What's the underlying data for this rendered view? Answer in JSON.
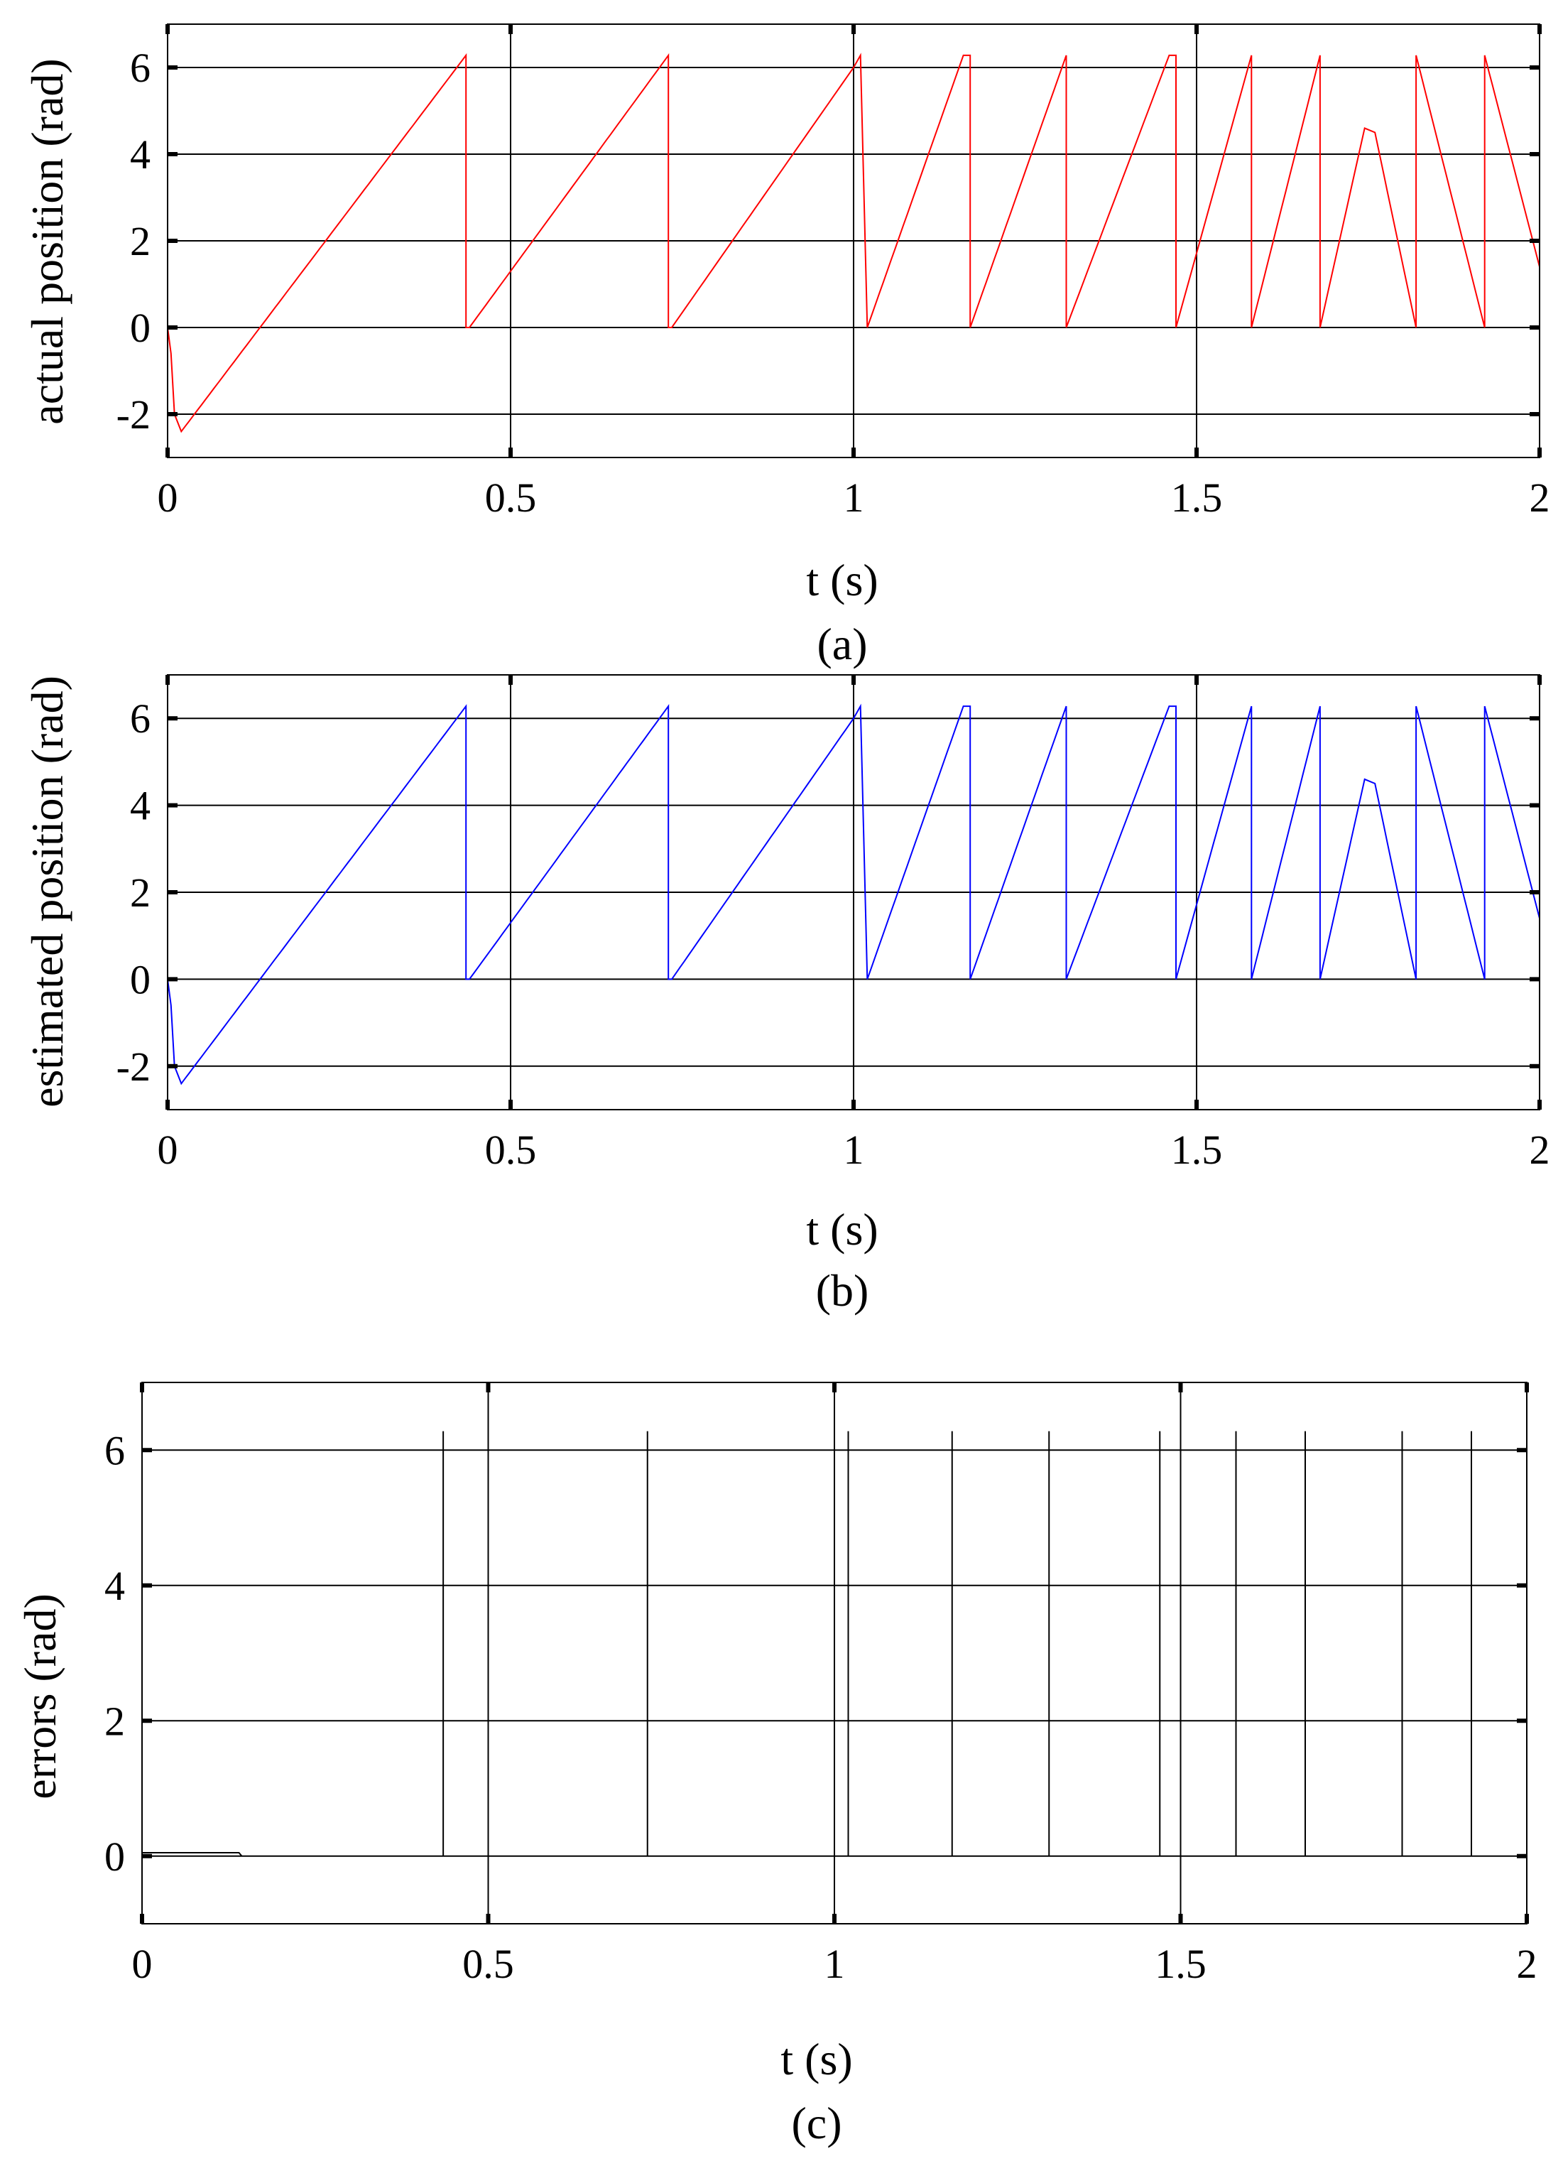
{
  "colors": {
    "background": "#ffffff",
    "grid": "#000000",
    "frame": "#000000",
    "series_a": "#ff0000",
    "series_b": "#0000ff",
    "series_c": "#000000"
  },
  "chart_data": [
    {
      "id": "a",
      "type": "line",
      "caption": "(a)",
      "xlabel": "t (s)",
      "ylabel": "actual position (rad)",
      "xlim": [
        0,
        2
      ],
      "ylim": [
        -3,
        7
      ],
      "xticks": [
        0,
        0.5,
        1,
        1.5,
        2
      ],
      "xtick_labels": [
        "0",
        "0.5",
        "1",
        "1.5",
        "2"
      ],
      "yticks": [
        -2,
        0,
        2,
        4,
        6
      ],
      "ytick_labels": [
        "-2",
        "0",
        "2",
        "4",
        "6"
      ],
      "grid": true,
      "series": [
        {
          "kind": "sawtooth",
          "color": "#ff0000",
          "x": [
            0,
            0.005,
            0.01,
            0.02,
            0.435,
            0.435,
            0.44,
            0.73,
            0.73,
            0.735,
            1.0,
            1.01,
            1.02,
            1.16,
            1.17,
            1.17,
            1.31,
            1.31,
            1.46,
            1.47,
            1.47,
            1.58,
            1.58,
            1.68,
            1.68,
            1.745,
            1.76,
            1.82,
            1.82,
            1.82,
            1.92,
            1.92,
            2.0
          ],
          "y": [
            0,
            -0.6,
            -2.0,
            -2.4,
            6.28,
            0.0,
            0.0,
            6.28,
            0.0,
            0.0,
            6.0,
            6.28,
            0.0,
            6.28,
            6.28,
            0.0,
            6.28,
            0.0,
            6.28,
            6.28,
            0.0,
            6.28,
            0.0,
            6.28,
            0.0,
            4.6,
            4.5,
            0.0,
            6.28,
            6.28,
            0.0,
            6.28,
            1.4
          ]
        }
      ]
    },
    {
      "id": "b",
      "type": "line",
      "caption": "(b)",
      "xlabel": "t (s)",
      "ylabel": "estimated position (rad)",
      "xlim": [
        0,
        2
      ],
      "ylim": [
        -3,
        7
      ],
      "xticks": [
        0,
        0.5,
        1,
        1.5,
        2
      ],
      "xtick_labels": [
        "0",
        "0.5",
        "1",
        "1.5",
        "2"
      ],
      "yticks": [
        -2,
        0,
        2,
        4,
        6
      ],
      "ytick_labels": [
        "-2",
        "0",
        "2",
        "4",
        "6"
      ],
      "grid": true,
      "series": [
        {
          "kind": "sawtooth",
          "color": "#0000ff",
          "x": [
            0,
            0.005,
            0.01,
            0.02,
            0.435,
            0.435,
            0.44,
            0.73,
            0.73,
            0.735,
            1.0,
            1.01,
            1.02,
            1.16,
            1.17,
            1.17,
            1.31,
            1.31,
            1.46,
            1.47,
            1.47,
            1.58,
            1.58,
            1.68,
            1.68,
            1.745,
            1.76,
            1.82,
            1.82,
            1.82,
            1.92,
            1.92,
            2.0
          ],
          "y": [
            0,
            -0.6,
            -2.0,
            -2.4,
            6.28,
            0.0,
            0.0,
            6.28,
            0.0,
            0.0,
            6.0,
            6.28,
            0.0,
            6.28,
            6.28,
            0.0,
            6.28,
            0.0,
            6.28,
            6.28,
            0.0,
            6.28,
            0.0,
            6.28,
            0.0,
            4.6,
            4.5,
            0.0,
            6.28,
            6.28,
            0.0,
            6.28,
            1.4
          ]
        }
      ]
    },
    {
      "id": "c",
      "type": "line",
      "caption": "(c)",
      "xlabel": "t (s)",
      "ylabel": "errors (rad)",
      "xlim": [
        0,
        2
      ],
      "ylim": [
        -1,
        7
      ],
      "xticks": [
        0,
        0.5,
        1,
        1.5,
        2
      ],
      "xtick_labels": [
        "0",
        "0.5",
        "1",
        "1.5",
        "2"
      ],
      "yticks": [
        0,
        2,
        4,
        6
      ],
      "ytick_labels": [
        "0",
        "2",
        "4",
        "6"
      ],
      "grid": true,
      "series": [
        {
          "kind": "spikes",
          "color": "#000000",
          "baseline": 0,
          "small_offset": {
            "x": [
              0,
              0.14
            ],
            "y": 0.05
          },
          "spike_x": [
            0.435,
            0.73,
            1.02,
            1.17,
            1.31,
            1.47,
            1.58,
            1.68,
            1.82,
            1.92
          ],
          "spike_y": 6.28
        }
      ]
    }
  ]
}
